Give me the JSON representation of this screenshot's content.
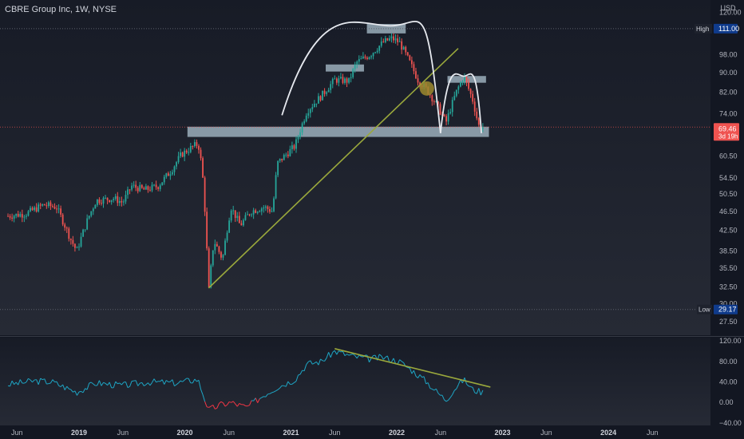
{
  "header": {
    "title": "CBRE Group Inc, 1W, NYSE"
  },
  "chart_data": {
    "type": "candlestick",
    "currency": "USD",
    "price_axis": {
      "ticks": [
        "120.00",
        "111.00",
        "98.00",
        "90.00",
        "82.00",
        "74.00",
        "69.46",
        "60.50",
        "54.50",
        "50.50",
        "46.50",
        "42.50",
        "38.50",
        "35.50",
        "32.50",
        "30.00",
        "29.17",
        "27.50"
      ],
      "ylim": [
        26,
        122
      ]
    },
    "time_axis": {
      "ticks": [
        "Jun",
        "2019",
        "Jun",
        "2020",
        "Jun",
        "2021",
        "Jun",
        "2022",
        "Jun",
        "2023",
        "Jun",
        "2024",
        "Jun"
      ]
    },
    "labels": {
      "high": {
        "label": "High",
        "value": "111.00"
      },
      "low": {
        "label": "Low",
        "value": "29.17"
      },
      "last": {
        "value": "69.46",
        "countdown": "3d 19h"
      }
    },
    "oscillator": {
      "ticks": [
        "120.00",
        "80.00",
        "40.00",
        "0.00",
        "−40.00"
      ],
      "ylim": [
        -45,
        125
      ]
    },
    "price_path": [
      [
        "2018-05-01",
        45.5
      ],
      [
        "2018-07-01",
        46
      ],
      [
        "2018-09-01",
        48
      ],
      [
        "2018-10-15",
        47.5
      ],
      [
        "2018-12-01",
        41
      ],
      [
        "2018-12-24",
        38.5
      ],
      [
        "2019-02-01",
        45
      ],
      [
        "2019-03-01",
        49
      ],
      [
        "2019-05-01",
        49.5
      ],
      [
        "2019-06-01",
        48.5
      ],
      [
        "2019-07-01",
        52.5
      ],
      [
        "2019-08-15",
        51.5
      ],
      [
        "2019-10-01",
        52.5
      ],
      [
        "2019-11-15",
        56.5
      ],
      [
        "2019-12-20",
        61
      ],
      [
        "2020-01-15",
        62.5
      ],
      [
        "2020-02-10",
        64
      ],
      [
        "2020-02-20",
        63
      ],
      [
        "2020-03-05",
        53
      ],
      [
        "2020-03-23",
        31.5
      ],
      [
        "2020-04-10",
        40.5
      ],
      [
        "2020-05-10",
        37
      ],
      [
        "2020-06-08",
        47.5
      ],
      [
        "2020-07-10",
        43.5
      ],
      [
        "2020-08-15",
        46.5
      ],
      [
        "2020-10-01",
        47.5
      ],
      [
        "2020-10-30",
        46.5
      ],
      [
        "2020-11-15",
        58.5
      ],
      [
        "2021-01-15",
        63.5
      ],
      [
        "2021-02-25",
        75
      ],
      [
        "2021-04-15",
        80.5
      ],
      [
        "2021-06-01",
        87
      ],
      [
        "2021-07-20",
        86.5
      ],
      [
        "2021-08-15",
        94.5
      ],
      [
        "2021-10-01",
        98
      ],
      [
        "2021-11-15",
        104
      ],
      [
        "2021-12-15",
        106
      ],
      [
        "2022-01-10",
        104
      ],
      [
        "2022-02-15",
        94.5
      ],
      [
        "2022-03-15",
        87
      ],
      [
        "2022-04-15",
        83
      ],
      [
        "2022-05-20",
        77
      ],
      [
        "2022-06-20",
        71
      ],
      [
        "2022-07-25",
        82
      ],
      [
        "2022-08-20",
        88.5
      ],
      [
        "2022-09-20",
        79
      ],
      [
        "2022-10-10",
        70
      ],
      [
        "2022-10-25",
        69.46
      ]
    ],
    "oscillator_path": [
      [
        "2018-05-01",
        35
      ],
      [
        "2018-08-01",
        42
      ],
      [
        "2018-10-01",
        40
      ],
      [
        "2018-12-24",
        20
      ],
      [
        "2019-03-01",
        38
      ],
      [
        "2019-06-01",
        33
      ],
      [
        "2019-09-01",
        40
      ],
      [
        "2019-12-01",
        38
      ],
      [
        "2020-02-15",
        45
      ],
      [
        "2020-03-23",
        -15
      ],
      [
        "2020-05-01",
        -5
      ],
      [
        "2020-06-08",
        0
      ],
      [
        "2020-08-01",
        -10
      ],
      [
        "2020-10-01",
        15
      ],
      [
        "2020-11-15",
        30
      ],
      [
        "2021-01-15",
        45
      ],
      [
        "2021-02-25",
        75
      ],
      [
        "2021-04-15",
        80
      ],
      [
        "2021-06-01",
        100
      ],
      [
        "2021-08-01",
        90
      ],
      [
        "2021-10-01",
        85
      ],
      [
        "2021-11-15",
        88
      ],
      [
        "2022-01-10",
        80
      ],
      [
        "2022-03-01",
        60
      ],
      [
        "2022-04-15",
        40
      ],
      [
        "2022-05-20",
        20
      ],
      [
        "2022-06-20",
        5
      ],
      [
        "2022-07-25",
        30
      ],
      [
        "2022-08-20",
        45
      ],
      [
        "2022-09-20",
        25
      ],
      [
        "2022-10-25",
        20
      ]
    ],
    "annotations": {
      "resistance_zones": [
        {
          "from": "2020-01-10",
          "to": "2022-11-15",
          "low": 66.3,
          "high": 69.6
        },
        {
          "from": "2021-05-01",
          "to": "2021-09-10",
          "low": 90.5,
          "high": 93.6
        },
        {
          "from": "2021-09-20",
          "to": "2022-02-01",
          "low": 108.5,
          "high": 113.5
        },
        {
          "from": "2022-06-25",
          "to": "2022-11-05",
          "low": 85.8,
          "high": 88.6
        }
      ],
      "trendline_price": {
        "from": [
          "2020-03-23",
          32.3
        ],
        "to": [
          "2022-08-01",
          101
        ]
      },
      "trendline_osc": {
        "from": [
          "2021-06-01",
          105
        ],
        "to": [
          "2022-11-20",
          30
        ]
      },
      "arcs": [
        {
          "start": [
            "2020-12-01",
            73.5
          ],
          "peak": [
            "2021-12-10",
            112.5
          ],
          "end": [
            "2022-06-01",
            67.5
          ]
        },
        {
          "start": [
            "2022-06-01",
            67.5
          ],
          "peak": [
            "2022-08-20",
            88.5
          ],
          "end": [
            "2022-10-20",
            67.5
          ]
        }
      ],
      "marker": {
        "date": "2022-04-15",
        "value": 83.5
      },
      "colors": {
        "zone": "#b2c7d6",
        "arc": "#e6e9ef",
        "trend": "#9aa83c",
        "marker": "#9c8a2e",
        "up": "#26a69a",
        "down": "#ef5350",
        "osc_line": "#1ea6c5",
        "osc_low": "#f23645"
      }
    }
  }
}
